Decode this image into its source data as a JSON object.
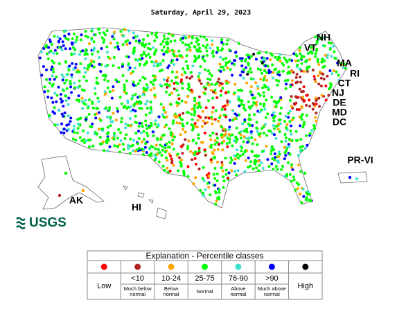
{
  "header": {
    "title": "Saturday, April 29, 2023"
  },
  "map": {
    "labels": [
      "NH",
      "VT",
      "MA",
      "RI",
      "CT",
      "NJ",
      "DE",
      "MD",
      "DC",
      "PR-VI",
      "AK",
      "HI"
    ]
  },
  "logo": {
    "text": "USGS"
  },
  "legend": {
    "title": "Explanation - Percentile classes",
    "classes": [
      {
        "label": "Low",
        "color": "#ff0000"
      },
      {
        "label": "<10",
        "sublabel": "Much below normal",
        "color": "#b22222"
      },
      {
        "label": "10-24",
        "sublabel": "Below normal",
        "color": "#ffa500"
      },
      {
        "label": "25-75",
        "sublabel": "Normal",
        "color": "#00ff00"
      },
      {
        "label": "76-90",
        "sublabel": "Above normal",
        "color": "#40e0d0"
      },
      {
        "label": ">90",
        "sublabel": "Much above normal",
        "color": "#0000ff"
      },
      {
        "label": "High",
        "color": "#000000"
      }
    ]
  }
}
